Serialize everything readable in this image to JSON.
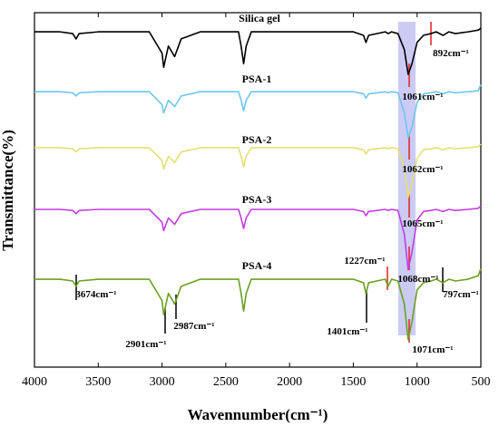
{
  "chart_data": {
    "type": "line",
    "x_label": "Wavennumber(cm⁻¹)",
    "y_label": "Transmittance(%)",
    "xlim": [
      4000,
      500
    ],
    "ylim": [
      0,
      100
    ],
    "xticks": [
      4000,
      3500,
      3000,
      2500,
      2000,
      1500,
      1000,
      500
    ],
    "x": [
      4000,
      3800,
      3700,
      3674,
      3650,
      3500,
      3100,
      3000,
      2987,
      2950,
      2901,
      2850,
      2700,
      2400,
      2380,
      2360,
      2340,
      2300,
      2000,
      1800,
      1500,
      1420,
      1401,
      1380,
      1250,
      1227,
      1200,
      1150,
      1100,
      1070,
      1040,
      1000,
      950,
      892,
      850,
      797,
      750,
      700,
      600,
      520,
      500
    ],
    "series": [
      {
        "name": "Silica gel",
        "color": "#000000",
        "values": [
          94.6,
          94.6,
          94.1,
          92.6,
          94.1,
          94.6,
          94.6,
          88.6,
          84.6,
          90.6,
          87.6,
          92.6,
          94.6,
          94.6,
          90.6,
          85.6,
          90.6,
          94.6,
          94.6,
          94.6,
          94.6,
          93.6,
          91.6,
          93.6,
          94.6,
          94.1,
          94.6,
          94.1,
          89.6,
          82.6,
          85.6,
          91.6,
          93.6,
          94.1,
          94.6,
          93.6,
          94.6,
          94.1,
          94.6,
          95.1,
          95.6
        ]
      },
      {
        "name": "PSA-1",
        "color": "#6ec6ee",
        "values": [
          77.7,
          77.7,
          77.4,
          76.5,
          77.4,
          77.7,
          77.7,
          74.1,
          71.7,
          75.3,
          73.5,
          76.5,
          77.7,
          77.7,
          75.3,
          72.3,
          75.3,
          77.7,
          77.7,
          77.7,
          77.7,
          77.1,
          75.9,
          77.1,
          77.7,
          77.4,
          77.7,
          77.4,
          71.7,
          64.7,
          67.7,
          74.7,
          77.1,
          77.4,
          77.7,
          77.1,
          77.7,
          77.4,
          77.7,
          78.0,
          79.7
        ]
      },
      {
        "name": "PSA-2",
        "color": "#e6df72",
        "values": [
          61.9,
          61.9,
          61.6,
          60.7,
          61.6,
          61.9,
          61.9,
          58.3,
          55.9,
          59.5,
          57.7,
          60.7,
          61.9,
          61.9,
          59.5,
          56.5,
          59.5,
          61.9,
          61.9,
          61.9,
          61.9,
          61.3,
          60.1,
          61.3,
          61.9,
          61.6,
          61.9,
          61.6,
          55.9,
          47.9,
          51.9,
          58.9,
          61.3,
          61.6,
          61.9,
          61.3,
          61.9,
          61.6,
          61.9,
          62.2,
          62.9
        ]
      },
      {
        "name": "PSA-3",
        "color": "#c23de0",
        "values": [
          44.5,
          44.5,
          44.2,
          43.3,
          44.2,
          44.5,
          44.5,
          40.9,
          38.5,
          42.1,
          40.3,
          43.3,
          44.5,
          44.5,
          42.1,
          39.1,
          42.1,
          44.5,
          44.5,
          44.5,
          44.5,
          43.9,
          42.7,
          43.9,
          44.5,
          44.2,
          44.5,
          44.2,
          37.5,
          27.5,
          32.5,
          41.5,
          43.9,
          44.2,
          44.5,
          43.9,
          44.5,
          44.2,
          44.5,
          44.8,
          45.5
        ]
      },
      {
        "name": "PSA-4",
        "color": "#6aa121",
        "values": [
          24.8,
          24.8,
          24.3,
          22.8,
          24.3,
          24.8,
          24.8,
          18.8,
          14.8,
          20.8,
          17.8,
          22.8,
          24.8,
          24.8,
          20.8,
          15.8,
          20.8,
          24.8,
          24.8,
          24.8,
          24.8,
          23.8,
          20.8,
          23.8,
          24.8,
          22.8,
          24.8,
          24.3,
          17.8,
          7.8,
          12.8,
          21.8,
          23.8,
          24.3,
          24.8,
          23.8,
          24.8,
          24.3,
          24.8,
          25.8,
          27.8
        ]
      }
    ],
    "annotations": [
      "892cm⁻¹",
      "1061cm⁻¹",
      "1062cm⁻¹",
      "1065cm⁻¹",
      "1227cm⁻¹",
      "1068cm⁻¹",
      "797cm⁻¹",
      "3674cm⁻¹",
      "2901cm⁻¹",
      "2987cm⁻¹",
      "1401cm⁻¹",
      "1071cm⁻¹"
    ]
  }
}
